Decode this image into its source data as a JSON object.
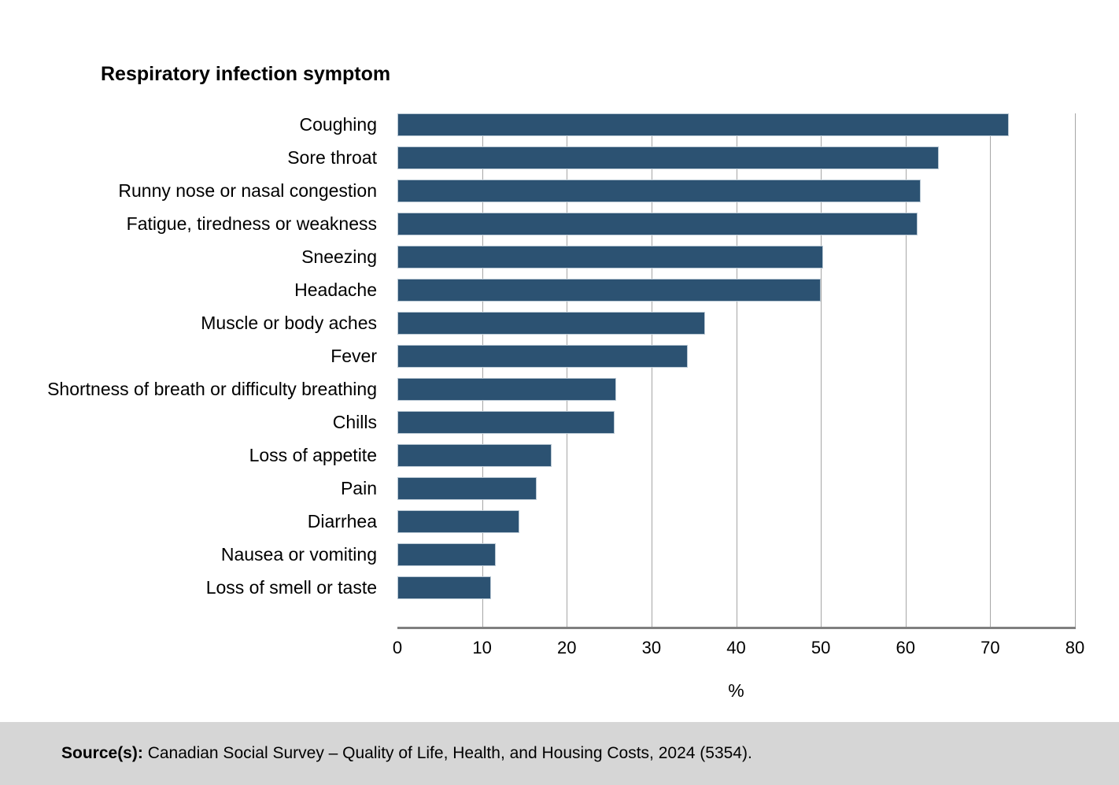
{
  "chart_title": "Respiratory infection symptom",
  "source": {
    "label": "Source(s):",
    "text": " Canadian Social Survey – Quality of Life, Health, and Housing Costs, 2024 (5354)."
  },
  "colors": {
    "bar_fill": "#2c5272",
    "bar_border": "#b9c8d4",
    "gridline": "#a6a6a6",
    "axis_line": "#808080",
    "source_band": "#d6d6d6"
  },
  "chart_data": {
    "type": "bar",
    "orientation": "horizontal",
    "title": "Respiratory infection symptom",
    "xlabel": "%",
    "xlim": [
      0,
      80
    ],
    "xticks": [
      0,
      10,
      20,
      30,
      40,
      50,
      60,
      70,
      80
    ],
    "grid": true,
    "legend": false,
    "categories": [
      "Coughing",
      "Sore throat",
      "Runny nose or nasal congestion",
      "Fatigue, tiredness or weakness",
      "Sneezing",
      "Headache",
      "Muscle or body aches",
      "Fever",
      "Shortness of breath or difficulty breathing",
      "Chills",
      "Loss of appetite",
      "Pain",
      "Diarrhea",
      "Nausea or vomiting",
      "Loss of smell or taste"
    ],
    "values": [
      72.2,
      63.9,
      61.8,
      61.4,
      50.3,
      50.0,
      36.3,
      34.3,
      25.8,
      25.6,
      18.2,
      16.4,
      14.4,
      11.6,
      11.1
    ]
  }
}
